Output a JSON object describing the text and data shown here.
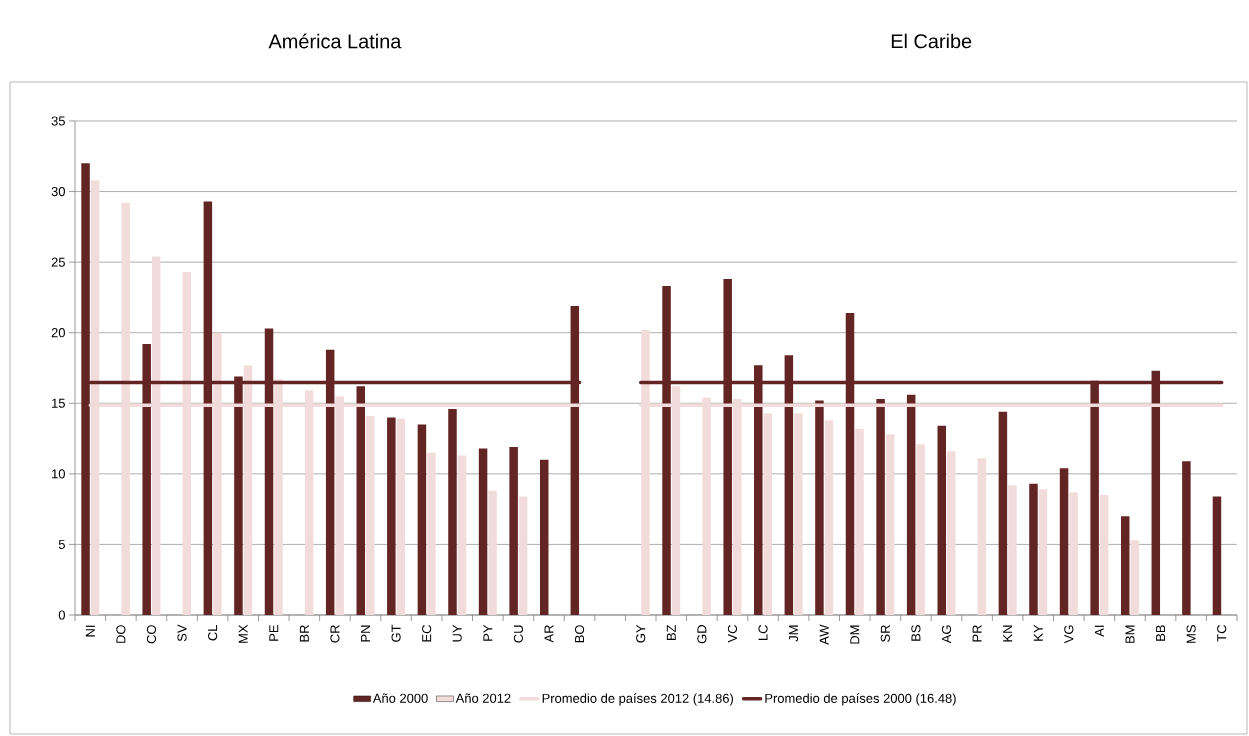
{
  "chart_data": {
    "type": "bar",
    "annotations": [
      "América Latina",
      "El Caribe"
    ],
    "categories": [
      "NI",
      "DO",
      "CO",
      "SV",
      "CL",
      "MX",
      "PE",
      "BR",
      "CR",
      "PN",
      "GT",
      "EC",
      "UY",
      "PY",
      "CU",
      "AR",
      "BO",
      null,
      "GY",
      "BZ",
      "GD",
      "VC",
      "LC",
      "JM",
      "AW",
      "DM",
      "SR",
      "BS",
      "AG",
      "PR",
      "KN",
      "KY",
      "VG",
      "AI",
      "BM",
      "BB",
      "MS",
      "TC"
    ],
    "series": [
      {
        "name": "Año 2000",
        "color": "#632523",
        "values": [
          32.0,
          null,
          19.2,
          null,
          29.3,
          16.9,
          20.3,
          null,
          18.8,
          16.2,
          14.0,
          13.5,
          14.6,
          11.8,
          11.9,
          11.0,
          21.9,
          null,
          null,
          23.3,
          null,
          23.8,
          17.7,
          18.4,
          15.2,
          21.4,
          15.3,
          15.6,
          13.4,
          null,
          14.4,
          9.3,
          10.4,
          16.6,
          7.0,
          17.3,
          10.9,
          8.4
        ]
      },
      {
        "name": "Año 2012",
        "color": "#f2dcdb",
        "values": [
          30.8,
          29.2,
          25.4,
          24.3,
          20.0,
          17.7,
          16.7,
          15.9,
          15.5,
          14.1,
          13.9,
          11.5,
          11.3,
          8.8,
          8.4,
          null,
          null,
          null,
          20.2,
          16.2,
          15.4,
          15.3,
          14.3,
          14.3,
          13.8,
          13.2,
          12.8,
          12.1,
          11.6,
          11.1,
          9.2,
          8.9,
          8.7,
          8.5,
          5.3,
          null,
          null,
          null
        ]
      },
      {
        "name": "Promedio de países  2012 (14.86)",
        "type": "line",
        "color": "#f2dcdb",
        "values": [
          14.86,
          14.86,
          14.86,
          14.86,
          14.86,
          14.86,
          14.86,
          14.86,
          14.86,
          14.86,
          14.86,
          14.86,
          14.86,
          14.86,
          14.86,
          14.86,
          14.86,
          null,
          14.86,
          14.86,
          14.86,
          14.86,
          14.86,
          14.86,
          14.86,
          14.86,
          14.86,
          14.86,
          14.86,
          14.86,
          14.86,
          14.86,
          14.86,
          14.86,
          14.86,
          14.86,
          14.86,
          14.86
        ]
      },
      {
        "name": "Promedio de países  2000 (16.48)",
        "type": "line",
        "color": "#632523",
        "values": [
          16.48,
          16.48,
          16.48,
          16.48,
          16.48,
          16.48,
          16.48,
          16.48,
          16.48,
          16.48,
          16.48,
          16.48,
          16.48,
          16.48,
          16.48,
          16.48,
          16.48,
          null,
          16.48,
          16.48,
          16.48,
          16.48,
          16.48,
          16.48,
          16.48,
          16.48,
          16.48,
          16.48,
          16.48,
          16.48,
          16.48,
          16.48,
          16.48,
          16.48,
          16.48,
          16.48,
          16.48,
          16.48
        ]
      }
    ],
    "ylim": [
      0,
      35
    ],
    "yticks": [
      0,
      5,
      10,
      15,
      20,
      25,
      30,
      35
    ],
    "grid": "y",
    "legend": "bottom",
    "marker": "none",
    "line_style": "solid"
  }
}
